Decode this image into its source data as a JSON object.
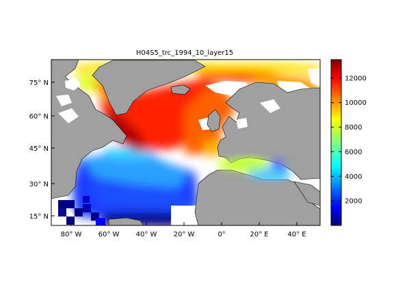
{
  "title": "H04S5_trc_1994_10_layer15",
  "lon_ticks": [
    "80° W",
    "60° W",
    "40° W",
    "20° W",
    "0°",
    "20° E",
    "40° E"
  ],
  "lat_ticks": [
    "75° N",
    "60° N",
    "45° N",
    "30° N",
    "15° N"
  ],
  "colorbar": {
    "ticks": [
      2000,
      4000,
      6000,
      8000,
      10000,
      12000
    ],
    "range": [
      0,
      13500
    ],
    "colormap": "jet"
  },
  "map_data": {
    "variable": "H04S5_trc_1994_10_layer15",
    "lon_range": [
      -90,
      50
    ],
    "lat_range": [
      10,
      85
    ],
    "land_color": "#a0a0a0",
    "no_data_color": "#ffffff"
  }
}
